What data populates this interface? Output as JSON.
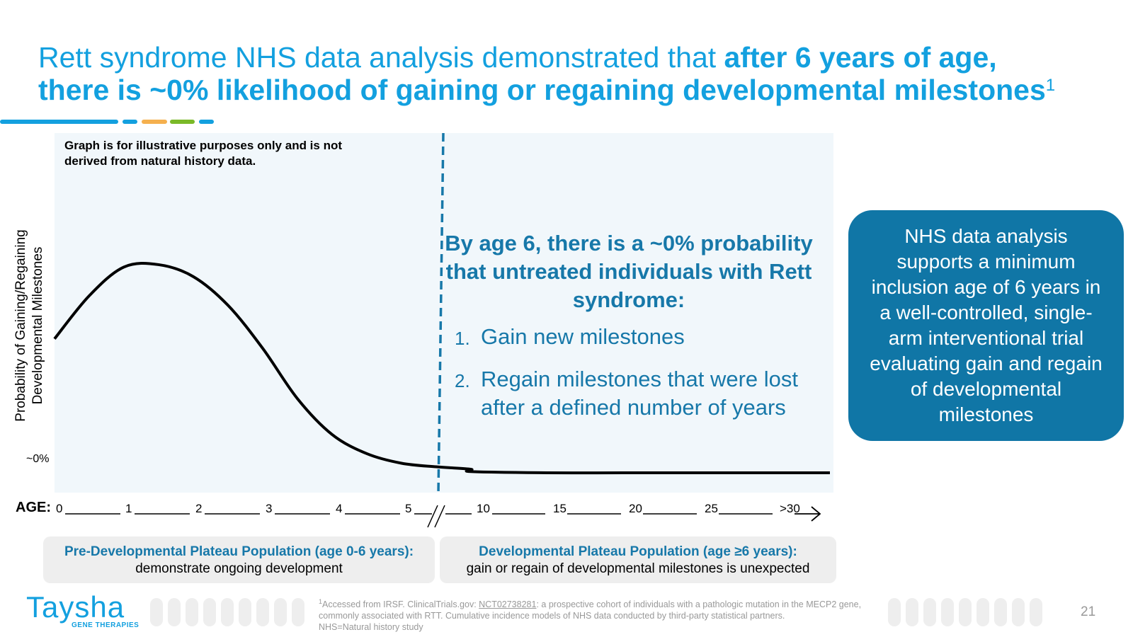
{
  "title": {
    "normal": "Rett syndrome NHS data analysis demonstrated that ",
    "bold_line1": "after 6 years of age,",
    "bold_line2": "there is ~0% likelihood of gaining or regaining developmental milestones",
    "superscript": "1"
  },
  "accent_colors": [
    "#13a0df",
    "#13a0df",
    "#f5b04e",
    "#7ab928",
    "#13a0df"
  ],
  "disclaimer": "Graph is for illustrative purposes only and is not derived from natural history data.",
  "callout": {
    "heading": "By age 6, there is a ~0% probability that untreated individuals with Rett syndrome:",
    "items": [
      {
        "num": "1.",
        "text": "Gain new milestones"
      },
      {
        "num": "2.",
        "text": "Regain milestones that were lost after a defined number of years"
      }
    ],
    "color": "#1778a9"
  },
  "sidebox": {
    "text": "NHS data analysis supports a minimum inclusion age of 6 years in a well-controlled, single-arm interventional trial evaluating gain and regain of developmental milestones",
    "color": "#1076a6"
  },
  "populations": [
    {
      "title": "Pre-Developmental Plateau Population (age 0-6 years):",
      "desc": "demonstrate ongoing development"
    },
    {
      "title": "Developmental Plateau Population (age ≥6 years):",
      "desc": "gain or regain of developmental milestones is unexpected"
    }
  ],
  "chart_data": {
    "type": "line",
    "ylabel": "Probability of Gaining/Regaining Developmental Milestones",
    "xlabel": "AGE:",
    "y_tick_label": "~0%",
    "x_tick_labels": [
      "0",
      "1",
      "2",
      "3",
      "4",
      "5",
      "10",
      "15",
      "20",
      "25",
      ">30"
    ],
    "axis_break_between": [
      "5",
      "10"
    ],
    "reference_line": {
      "at_age": 6,
      "style": "dashed",
      "color": "#1778a9"
    },
    "series": [
      {
        "color": "#000000",
        "points": [
          [
            0,
            0.56
          ],
          [
            0.5,
            0.74
          ],
          [
            1,
            0.86
          ],
          [
            1.5,
            0.87
          ],
          [
            2,
            0.82
          ],
          [
            2.5,
            0.7
          ],
          [
            3,
            0.52
          ],
          [
            3.5,
            0.31
          ],
          [
            4,
            0.16
          ],
          [
            4.5,
            0.08
          ],
          [
            5,
            0.04
          ],
          [
            5.5,
            0.025
          ],
          [
            6,
            0.015
          ],
          [
            10,
            0.005
          ],
          [
            15,
            0.0
          ],
          [
            20,
            0.0
          ],
          [
            25,
            0.0
          ],
          [
            30,
            0.0
          ]
        ]
      }
    ],
    "ylim": [
      0,
      1
    ]
  },
  "footnote": {
    "pre": "Accessed from IRSF. ClinicalTrials.gov: ",
    "link": "NCT02738281",
    "post": ": a prospective cohort of individuals with a pathologic mutation in the MECP2 gene, commonly associated with RTT. Cumulative incidence models of NHS data conducted by third-party statistical partners.",
    "line3": "NHS=Natural history study",
    "sup": "1"
  },
  "logo": {
    "name": "Taysha",
    "sub": "GENE THERAPIES"
  },
  "page_number": "21"
}
